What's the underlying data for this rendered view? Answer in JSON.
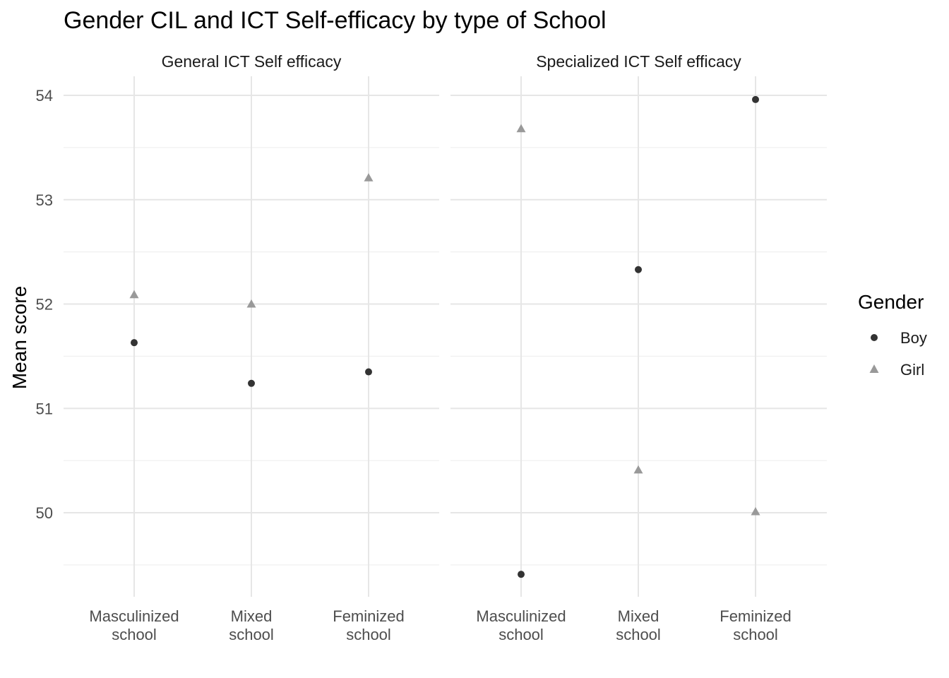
{
  "chart_data": {
    "type": "scatter",
    "title": "Gender CIL and ICT Self-efficacy by type of School",
    "xlabel": "",
    "ylabel": "Mean score",
    "ylim": [
      49.4,
      54.1
    ],
    "yticks": [
      50,
      51,
      52,
      53,
      54
    ],
    "grid": true,
    "categories": [
      [
        "Masculinized",
        "school"
      ],
      [
        "Mixed",
        "school"
      ],
      [
        "Feminized",
        "school"
      ]
    ],
    "panels": [
      {
        "name": "General ICT Self efficacy",
        "series": [
          {
            "name": "Boy",
            "values": [
              51.63,
              51.24,
              51.35
            ]
          },
          {
            "name": "Girl",
            "values": [
              52.09,
              52.0,
              53.21
            ]
          }
        ]
      },
      {
        "name": "Specialized ICT Self efficacy",
        "series": [
          {
            "name": "Boy",
            "values": [
              49.41,
              52.33,
              53.96
            ]
          },
          {
            "name": "Girl",
            "values": [
              53.68,
              50.41,
              50.01
            ]
          }
        ]
      }
    ],
    "legend": {
      "title": "Gender",
      "position": "right",
      "entries": [
        {
          "name": "Boy",
          "shape": "circle",
          "color": "#333333"
        },
        {
          "name": "Girl",
          "shape": "triangle",
          "color": "#999999"
        }
      ]
    }
  }
}
